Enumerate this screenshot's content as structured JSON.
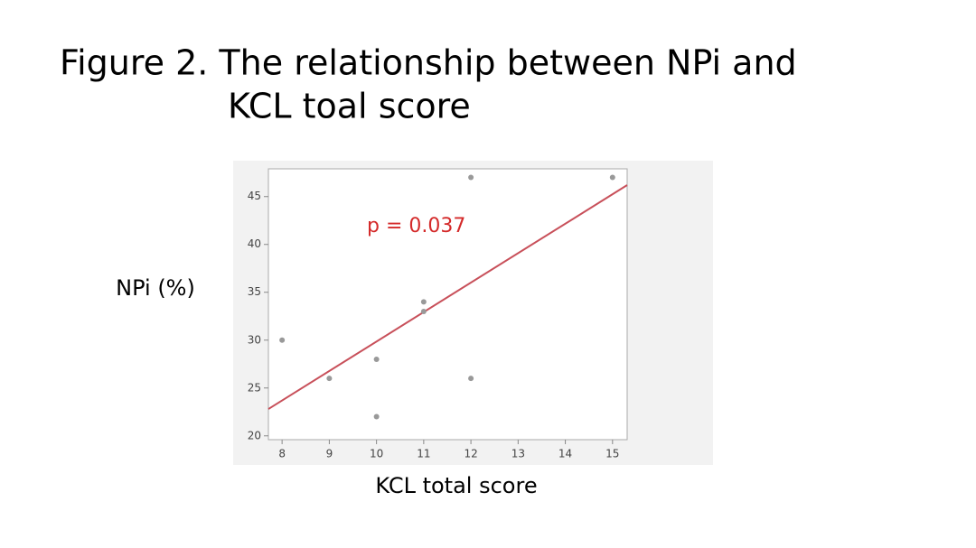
{
  "chart_data": {
    "type": "scatter",
    "title": [
      "Figure 2. The relationship between NPi and",
      "KCL toal  score"
    ],
    "xlabel": "KCL total score",
    "ylabel": "NPi (%)",
    "annotation": "p = 0.037",
    "annotation_color": "#d42a2a",
    "x": [
      8,
      9,
      10,
      10,
      11,
      11,
      12,
      12,
      15
    ],
    "values": [
      30,
      26,
      28,
      22,
      34,
      33,
      47,
      26,
      47
    ],
    "color": "#999999",
    "trendline": {
      "color": "#c8505a",
      "x": [
        7.71,
        15.31
      ],
      "y": [
        22.8,
        46.2
      ]
    },
    "xlim": [
      7.71,
      15.31
    ],
    "xticks": [
      8,
      9,
      10,
      11,
      12,
      13,
      14,
      15
    ],
    "ylim": [
      19.6,
      47.9
    ],
    "yticks": [
      20,
      25,
      30,
      35,
      40,
      45
    ]
  }
}
